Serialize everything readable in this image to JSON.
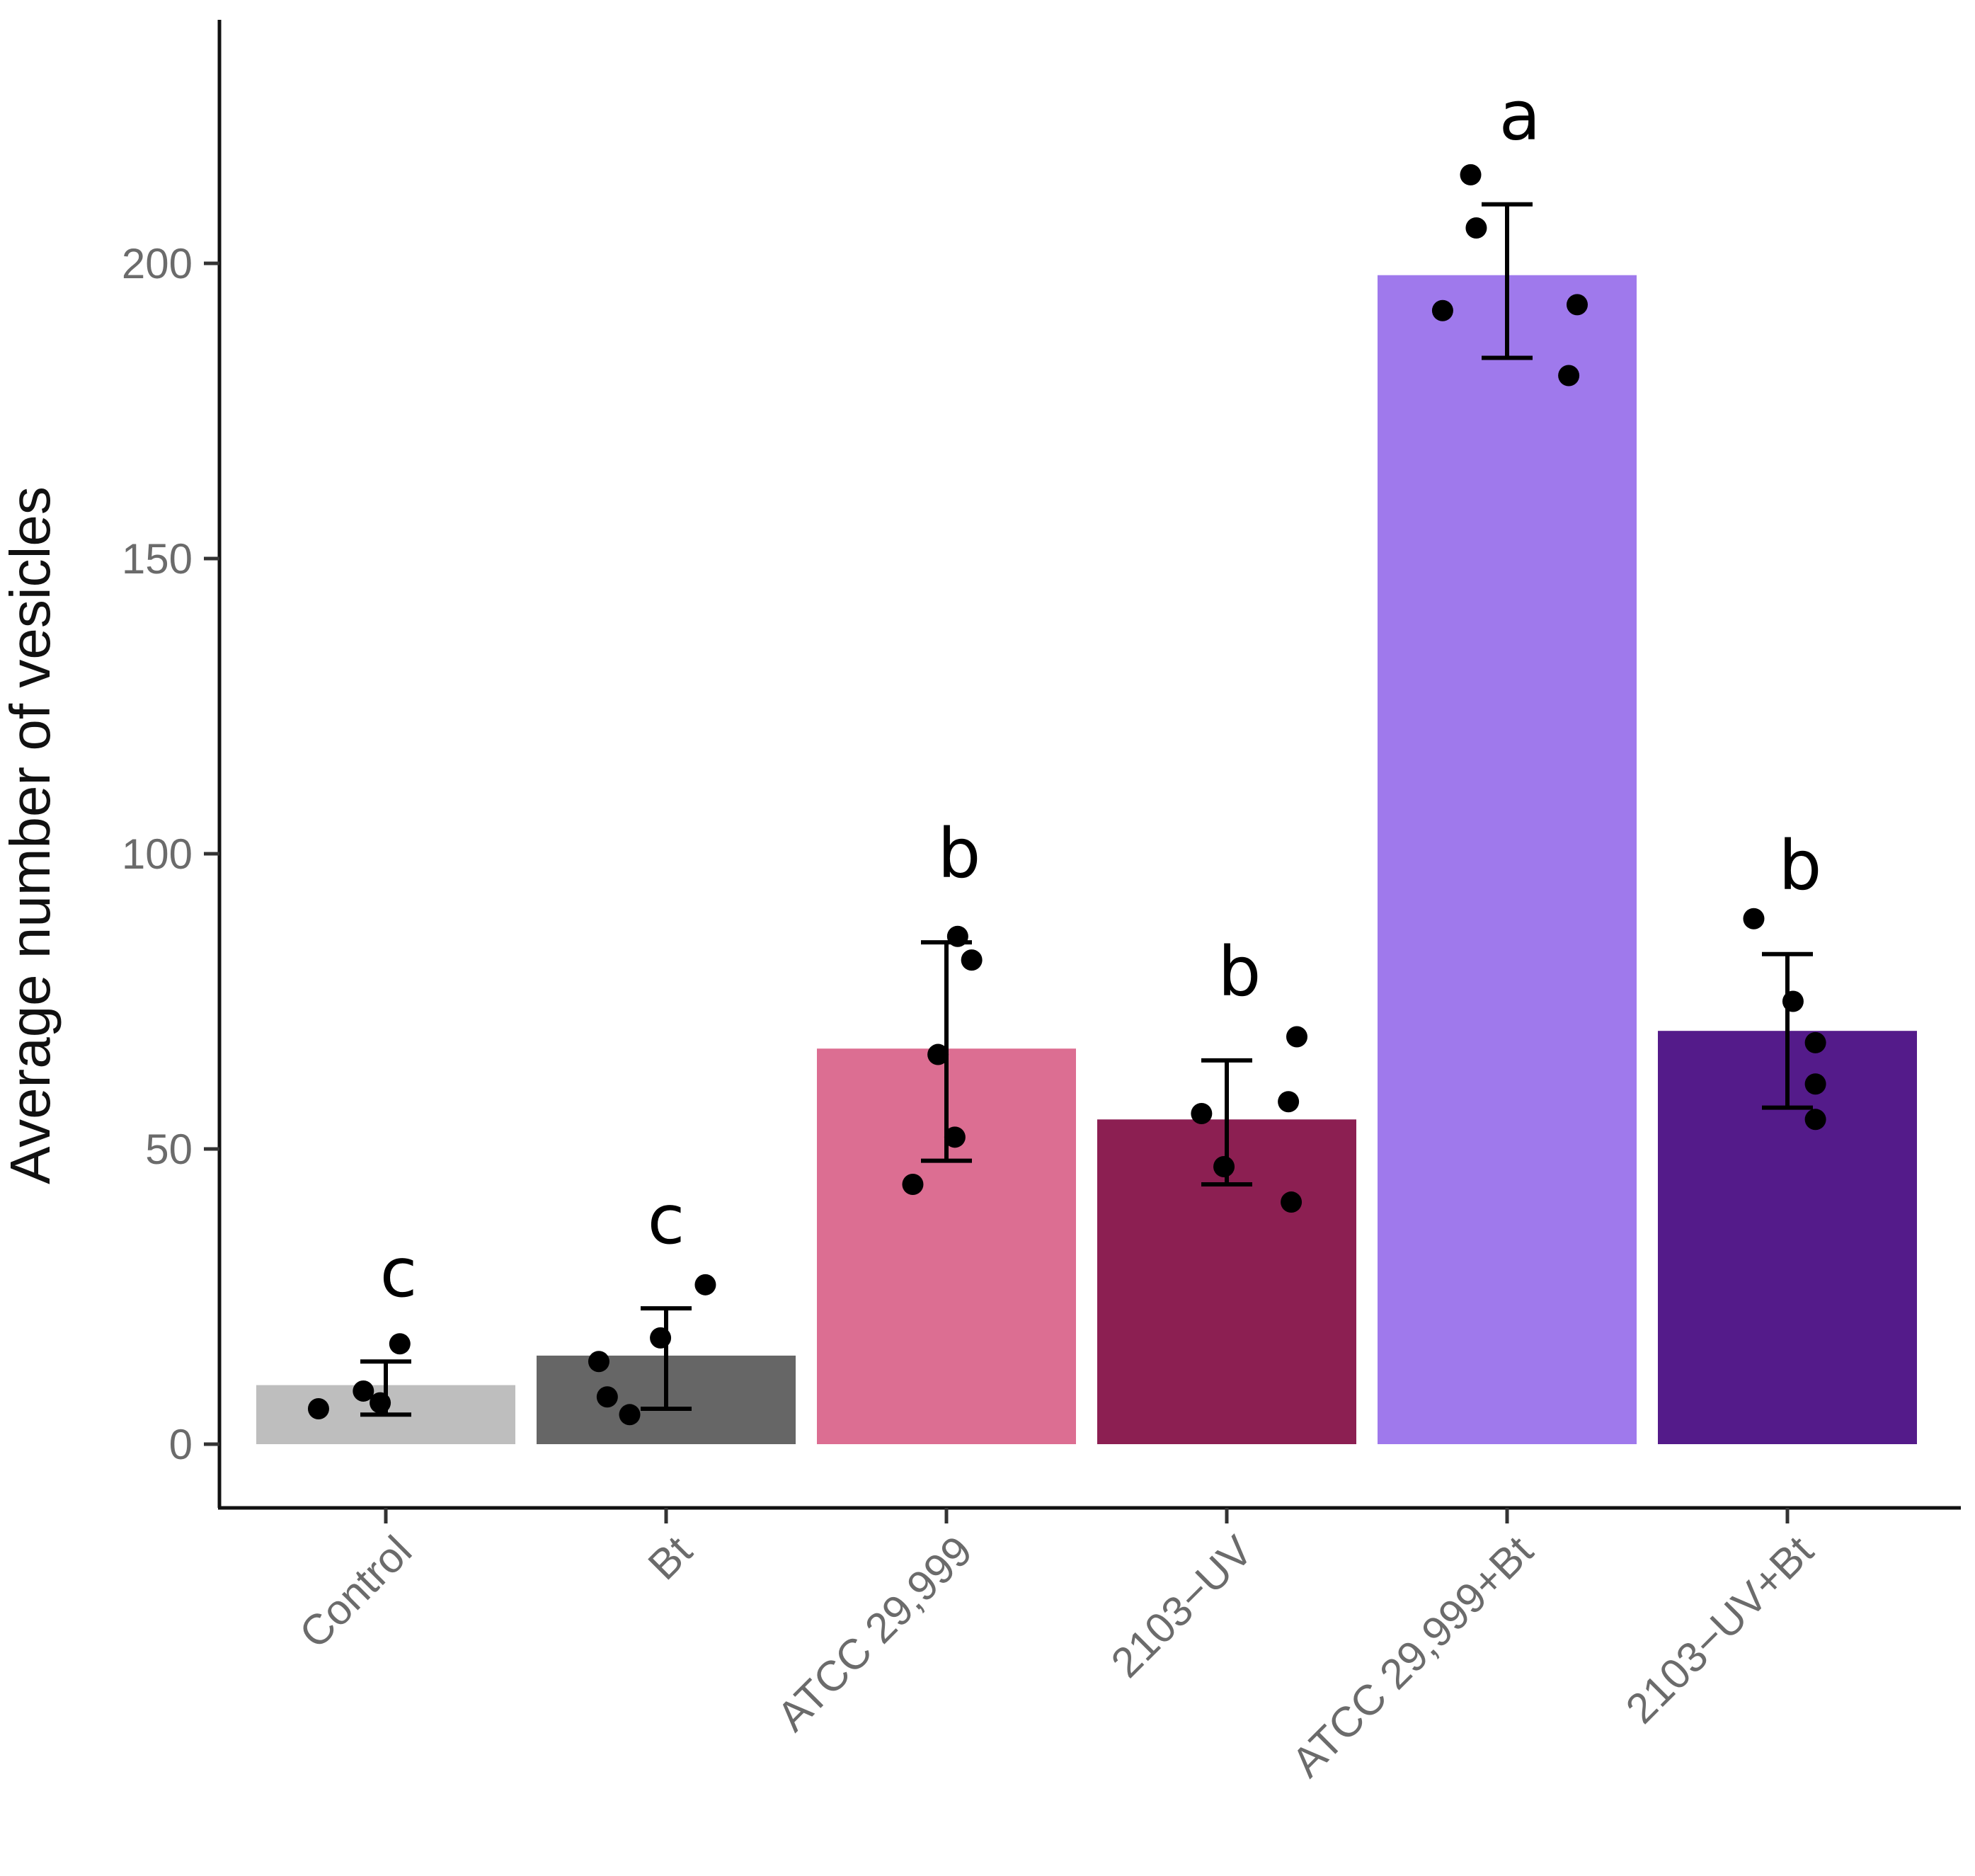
{
  "chart_data": {
    "type": "bar",
    "title": "",
    "xlabel": "",
    "ylabel": "Average number of vesicles",
    "ylim": [
      -11,
      242
    ],
    "yticks": [
      0,
      50,
      100,
      150,
      200
    ],
    "categories": [
      "Control",
      "Bt",
      "ATCC 29,999",
      "2103−UV",
      "ATCC 29,999+Bt",
      "2103−UV+Bt"
    ],
    "values": [
      10,
      15,
      67,
      55,
      198,
      70
    ],
    "error_low": [
      5,
      6,
      48,
      44,
      184,
      57
    ],
    "error_high": [
      14,
      23,
      85,
      65,
      210,
      83
    ],
    "significance": [
      "c",
      "c",
      "b",
      "b",
      "a",
      "b"
    ],
    "colors": [
      "#bebebe",
      "#666666",
      "#dc6e92",
      "#8c1f52",
      "#9f79ec",
      "#541b8a"
    ],
    "points": [
      [
        {
          "dx": -0.24,
          "y": 6
        },
        {
          "dx": -0.08,
          "y": 9
        },
        {
          "dx": -0.02,
          "y": 7
        },
        {
          "dx": 0.05,
          "y": 17
        }
      ],
      [
        {
          "dx": -0.24,
          "y": 14
        },
        {
          "dx": -0.21,
          "y": 8
        },
        {
          "dx": -0.13,
          "y": 5
        },
        {
          "dx": -0.02,
          "y": 18
        },
        {
          "dx": 0.14,
          "y": 27
        }
      ],
      [
        {
          "dx": -0.12,
          "y": 44
        },
        {
          "dx": -0.03,
          "y": 66
        },
        {
          "dx": 0.03,
          "y": 52
        },
        {
          "dx": 0.04,
          "y": 86
        },
        {
          "dx": 0.09,
          "y": 82
        }
      ],
      [
        {
          "dx": -0.09,
          "y": 56
        },
        {
          "dx": -0.01,
          "y": 47
        },
        {
          "dx": 0.22,
          "y": 58
        },
        {
          "dx": 0.23,
          "y": 41
        },
        {
          "dx": 0.25,
          "y": 69
        }
      ],
      [
        {
          "dx": -0.23,
          "y": 192
        },
        {
          "dx": -0.13,
          "y": 215
        },
        {
          "dx": -0.11,
          "y": 206
        },
        {
          "dx": 0.22,
          "y": 181
        },
        {
          "dx": 0.25,
          "y": 193
        }
      ],
      [
        {
          "dx": -0.12,
          "y": 89
        },
        {
          "dx": 0.02,
          "y": 75
        },
        {
          "dx": 0.1,
          "y": 55
        },
        {
          "dx": 0.1,
          "y": 61
        },
        {
          "dx": 0.1,
          "y": 68
        }
      ]
    ]
  }
}
